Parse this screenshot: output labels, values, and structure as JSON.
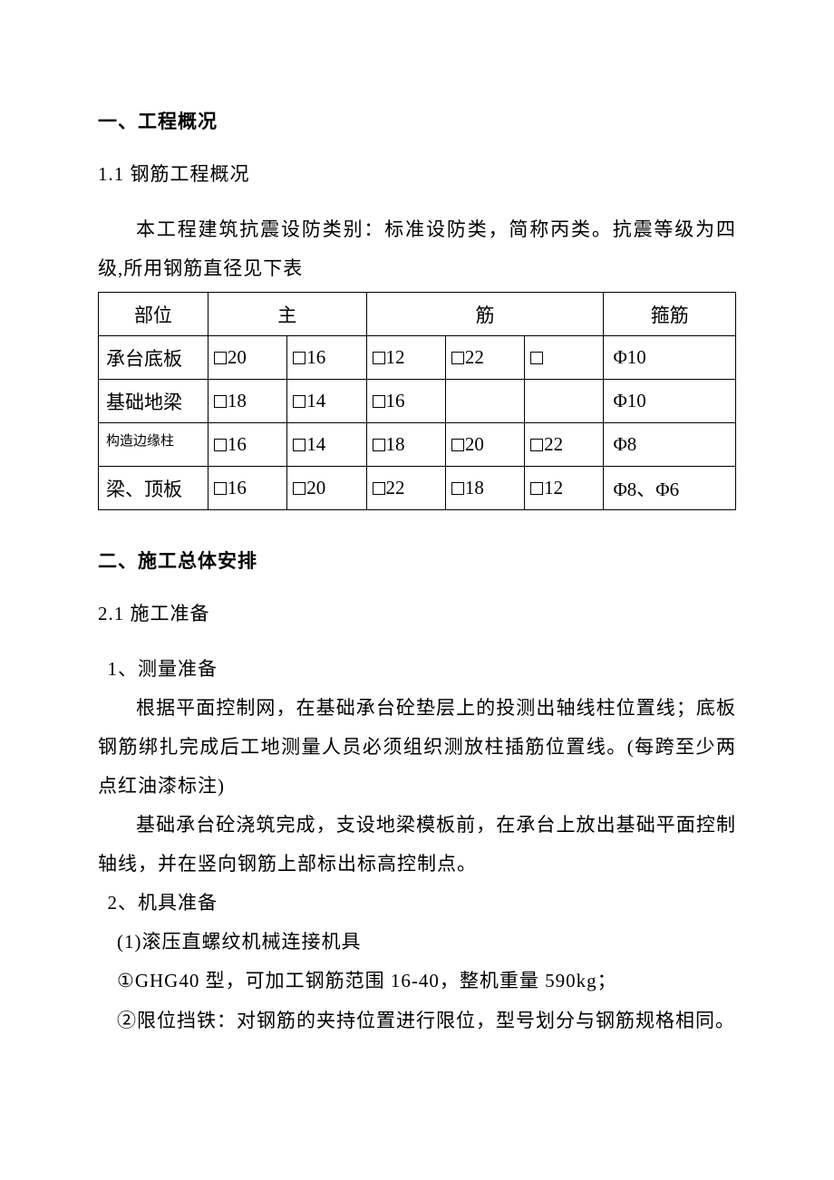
{
  "colors": {
    "background": "#ffffff",
    "text": "#000000",
    "border": "#000000"
  },
  "typography": {
    "body_fontsize_pt": 16,
    "heading_fontsize_pt": 16,
    "small_fontsize_pt": 11,
    "line_height": 2.05,
    "font_family": "SimSun"
  },
  "section1": {
    "heading": "一、工程概况",
    "sub_1_1": "1.1 钢筋工程概况",
    "para1": "本工程建筑抗震设防类别：标准设防类，简称丙类。抗震等级为四级,所用钢筋直径见下表"
  },
  "rebar_table": {
    "type": "table",
    "columns": [
      "部位",
      "主",
      "筋",
      "箍筋"
    ],
    "col_widths": {
      "part": 108,
      "main_each": 78,
      "stirrup": 130
    },
    "main_colspan": 5,
    "header": {
      "part": "部位",
      "main_left": "主",
      "main_right": "筋",
      "stirrup": "箍筋"
    },
    "rows": [
      {
        "part": "承台底板",
        "main": [
          "20",
          "16",
          "12",
          "22",
          ""
        ],
        "main_has_box": [
          true,
          true,
          true,
          true,
          true
        ],
        "stirrup": "Φ10",
        "part_small": false
      },
      {
        "part": "基础地梁",
        "main": [
          "18",
          "14",
          "16",
          "",
          ""
        ],
        "main_has_box": [
          true,
          true,
          true,
          false,
          false
        ],
        "stirrup": "Φ10",
        "part_small": false
      },
      {
        "part": "构造边缘柱",
        "main": [
          "16",
          "14",
          "18",
          "20",
          "22"
        ],
        "main_has_box": [
          true,
          true,
          true,
          true,
          true
        ],
        "stirrup": "Φ8",
        "part_small": true
      },
      {
        "part": "梁、顶板",
        "main": [
          "16",
          "20",
          "22",
          "18",
          "12"
        ],
        "main_has_box": [
          true,
          true,
          true,
          true,
          true
        ],
        "stirrup": "Φ8、Φ6",
        "part_small": false
      }
    ]
  },
  "section2": {
    "heading": "二、施工总体安排",
    "sub_2_1": "2.1 施工准备",
    "item1": "1、测量准备",
    "para2": "根据平面控制网，在基础承台砼垫层上的投测出轴线柱位置线；底板钢筋绑扎完成后工地测量人员必须组织测放柱插筋位置线。(每跨至少两点红油漆标注)",
    "para3": "基础承台砼浇筑完成，支设地梁模板前，在承台上放出基础平面控制轴线，并在竖向钢筋上部标出标高控制点。",
    "item2": "2、机具准备",
    "sub_item_1": "(1)滚压直螺纹机械连接机具",
    "sub_item_1_1": "①GHG40 型，可加工钢筋范围 16-40，整机重量 590kg；",
    "sub_item_1_2": "②限位挡铁：对钢筋的夹持位置进行限位，型号划分与钢筋规格相同。"
  }
}
